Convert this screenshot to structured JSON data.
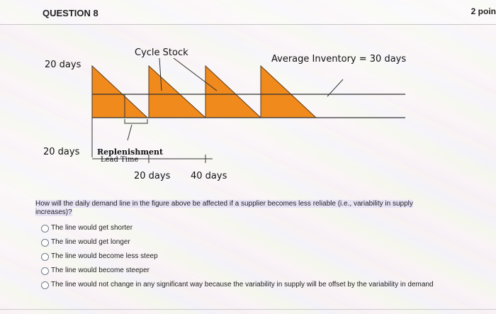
{
  "header": {
    "question_label": "QUESTION 8",
    "points": "2 poin"
  },
  "figure": {
    "cycle_stock_label": "Cycle Stock",
    "avg_inventory_label": "Average Inventory = 30 days",
    "y_label_top": "20 days",
    "y_label_bottom": "20 days",
    "replenishment_label": "Replenishment",
    "lead_time_label": "Lead Time",
    "x_tick_1": "20 days",
    "x_tick_2": "40 days",
    "colors": {
      "fill": "#f08a1c",
      "stroke": "#5a3a1a",
      "line": "#333333"
    }
  },
  "question": {
    "text": "How will the daily demand line in the figure above be affected if a supplier becomes less reliable (i.e., variability in supply increases)?"
  },
  "options": [
    "The line would get shorter",
    "The line would get longer",
    "The line would become less steep",
    "The line would become steeper",
    "The line would not change in any significant way because the variability in supply will be offset by the variability in demand"
  ]
}
